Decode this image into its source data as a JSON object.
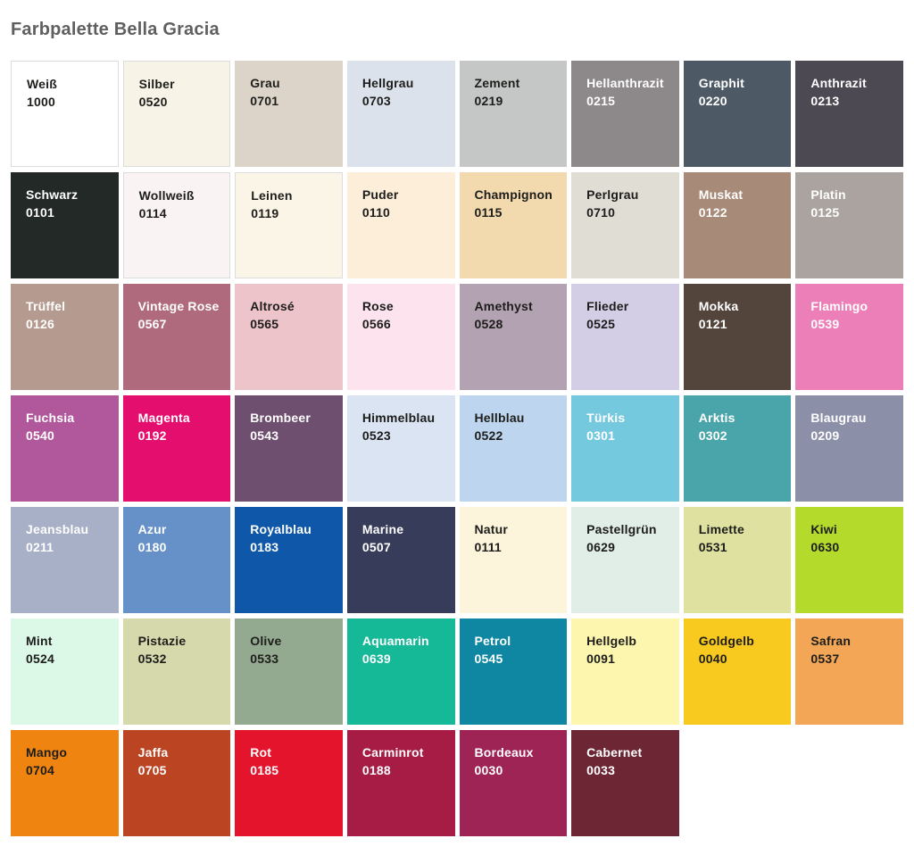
{
  "chart_data": {
    "type": "table",
    "title": "Farbpalette Bella Gracia",
    "columns": [
      "name",
      "code"
    ],
    "layout": {
      "grid_columns": 8,
      "grid_rows": 7,
      "filled_cells": 54,
      "empty_cells": 2,
      "legend_position": "none",
      "grid": "off"
    },
    "swatches": [
      {
        "name": "Weiß",
        "code": "1000",
        "hex": "#ffffff",
        "text": "dark",
        "border": true
      },
      {
        "name": "Silber",
        "code": "0520",
        "hex": "#f7f3e6",
        "text": "dark",
        "border": true
      },
      {
        "name": "Grau",
        "code": "0701",
        "hex": "#dcd4c8",
        "text": "dark",
        "border": false
      },
      {
        "name": "Hellgrau",
        "code": "0703",
        "hex": "#dbe2ec",
        "text": "dark",
        "border": false
      },
      {
        "name": "Zement",
        "code": "0219",
        "hex": "#c5c7c6",
        "text": "dark",
        "border": false
      },
      {
        "name": "Hellanthrazit",
        "code": "0215",
        "hex": "#8d8889",
        "text": "light",
        "border": false
      },
      {
        "name": "Graphit",
        "code": "0220",
        "hex": "#4d5a66",
        "text": "light",
        "border": false
      },
      {
        "name": "Anthrazit",
        "code": "0213",
        "hex": "#4c4952",
        "text": "light",
        "border": false
      },
      {
        "name": "Schwarz",
        "code": "0101",
        "hex": "#232927",
        "text": "light",
        "border": false
      },
      {
        "name": "Wollweiß",
        "code": "0114",
        "hex": "#f9f4f3",
        "text": "dark",
        "border": true
      },
      {
        "name": "Leinen",
        "code": "0119",
        "hex": "#fbf5e8",
        "text": "dark",
        "border": true
      },
      {
        "name": "Puder",
        "code": "0110",
        "hex": "#fdeeda",
        "text": "dark",
        "border": false
      },
      {
        "name": "Champignon",
        "code": "0115",
        "hex": "#f2d9ae",
        "text": "dark",
        "border": false
      },
      {
        "name": "Perlgrau",
        "code": "0710",
        "hex": "#dfddd4",
        "text": "dark",
        "border": false
      },
      {
        "name": "Muskat",
        "code": "0122",
        "hex": "#a78a78",
        "text": "light",
        "border": false
      },
      {
        "name": "Platin",
        "code": "0125",
        "hex": "#aba39f",
        "text": "light",
        "border": false
      },
      {
        "name": "Trüffel",
        "code": "0126",
        "hex": "#b59a8f",
        "text": "light",
        "border": false
      },
      {
        "name": "Vintage Rose",
        "code": "0567",
        "hex": "#b06a7e",
        "text": "light",
        "border": false
      },
      {
        "name": "Altrosé",
        "code": "0565",
        "hex": "#edc4c9",
        "text": "dark",
        "border": false
      },
      {
        "name": "Rose",
        "code": "0566",
        "hex": "#fce3ed",
        "text": "dark",
        "border": false
      },
      {
        "name": "Amethyst",
        "code": "0528",
        "hex": "#b3a2b2",
        "text": "dark",
        "border": false
      },
      {
        "name": "Flieder",
        "code": "0525",
        "hex": "#d4cde6",
        "text": "dark",
        "border": false
      },
      {
        "name": "Mokka",
        "code": "0121",
        "hex": "#53443c",
        "text": "light",
        "border": false
      },
      {
        "name": "Flamingo",
        "code": "0539",
        "hex": "#ec7eb8",
        "text": "light",
        "border": false
      },
      {
        "name": "Fuchsia",
        "code": "0540",
        "hex": "#b1589c",
        "text": "light",
        "border": false
      },
      {
        "name": "Magenta",
        "code": "0192",
        "hex": "#e40e6f",
        "text": "light",
        "border": false
      },
      {
        "name": "Brombeer",
        "code": "0543",
        "hex": "#6f4f70",
        "text": "light",
        "border": false
      },
      {
        "name": "Himmelblau",
        "code": "0523",
        "hex": "#dbe4f3",
        "text": "dark",
        "border": false
      },
      {
        "name": "Hellblau",
        "code": "0522",
        "hex": "#bdd5ee",
        "text": "dark",
        "border": false
      },
      {
        "name": "Türkis",
        "code": "0301",
        "hex": "#74c9df",
        "text": "light",
        "border": false
      },
      {
        "name": "Arktis",
        "code": "0302",
        "hex": "#49a5a9",
        "text": "light",
        "border": false
      },
      {
        "name": "Blaugrau",
        "code": "0209",
        "hex": "#8b8fa8",
        "text": "light",
        "border": false
      },
      {
        "name": "Jeansblau",
        "code": "0211",
        "hex": "#a7b0c6",
        "text": "light",
        "border": false
      },
      {
        "name": "Azur",
        "code": "0180",
        "hex": "#6591c8",
        "text": "light",
        "border": false
      },
      {
        "name": "Royalblau",
        "code": "0183",
        "hex": "#0f57a8",
        "text": "light",
        "border": false
      },
      {
        "name": "Marine",
        "code": "0507",
        "hex": "#363c59",
        "text": "light",
        "border": false
      },
      {
        "name": "Natur",
        "code": "0111",
        "hex": "#fcf5db",
        "text": "dark",
        "border": false
      },
      {
        "name": "Pastellgrün",
        "code": "0629",
        "hex": "#e1ede7",
        "text": "dark",
        "border": false
      },
      {
        "name": "Limette",
        "code": "0531",
        "hex": "#dee1a0",
        "text": "dark",
        "border": false
      },
      {
        "name": "Kiwi",
        "code": "0630",
        "hex": "#b4da2c",
        "text": "dark",
        "border": false
      },
      {
        "name": "Mint",
        "code": "0524",
        "hex": "#dcf8e6",
        "text": "dark",
        "border": false
      },
      {
        "name": "Pistazie",
        "code": "0532",
        "hex": "#d6d9ab",
        "text": "dark",
        "border": false
      },
      {
        "name": "Olive",
        "code": "0533",
        "hex": "#94aa90",
        "text": "dark",
        "border": false
      },
      {
        "name": "Aquamarin",
        "code": "0639",
        "hex": "#15b897",
        "text": "light",
        "border": false
      },
      {
        "name": "Petrol",
        "code": "0545",
        "hex": "#0f87a2",
        "text": "light",
        "border": false
      },
      {
        "name": "Hellgelb",
        "code": "0091",
        "hex": "#fdf6af",
        "text": "dark",
        "border": false
      },
      {
        "name": "Goldgelb",
        "code": "0040",
        "hex": "#f8c91e",
        "text": "dark",
        "border": false
      },
      {
        "name": "Safran",
        "code": "0537",
        "hex": "#f3a756",
        "text": "dark",
        "border": false
      },
      {
        "name": "Mango",
        "code": "0704",
        "hex": "#ef8410",
        "text": "dark",
        "border": false
      },
      {
        "name": "Jaffa",
        "code": "0705",
        "hex": "#bb4423",
        "text": "light",
        "border": false
      },
      {
        "name": "Rot",
        "code": "0185",
        "hex": "#e3142b",
        "text": "light",
        "border": false
      },
      {
        "name": "Carminrot",
        "code": "0188",
        "hex": "#a71c45",
        "text": "light",
        "border": false
      },
      {
        "name": "Bordeaux",
        "code": "0030",
        "hex": "#9f2456",
        "text": "light",
        "border": false
      },
      {
        "name": "Cabernet",
        "code": "0033",
        "hex": "#6c2634",
        "text": "light",
        "border": false
      }
    ]
  },
  "colors": {
    "background": "#ffffff",
    "title_text": "#5f5f5f",
    "dark_swatch_text": "#1d1d1b",
    "light_swatch_text": "#ffffff",
    "light_swatch_border": "#dcdcdc"
  }
}
